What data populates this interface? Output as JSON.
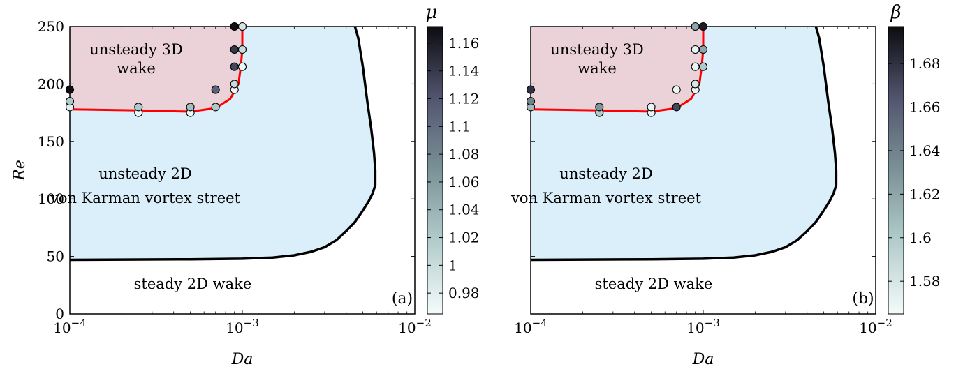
{
  "chart_data": [
    {
      "type": "scatter",
      "panel_label": "(a)",
      "xlabel": "Da",
      "ylabel": "Re",
      "xscale": "log",
      "xlim": [
        0.0001,
        0.01
      ],
      "ylim": [
        0,
        250
      ],
      "x_ticks": [
        {
          "v": 0.0001,
          "base": "10",
          "exp": "−4"
        },
        {
          "v": 0.001,
          "base": "10",
          "exp": "−3"
        },
        {
          "v": 0.01,
          "base": "10",
          "exp": "−2"
        }
      ],
      "y_ticks": [
        "0",
        "50",
        "100",
        "150",
        "200",
        "250"
      ],
      "regions": {
        "steady": {
          "label": "steady 2D wake",
          "color": "#ffffff"
        },
        "unsteady2d": {
          "line1": "unsteady 2D",
          "line2": "von Karman vortex street",
          "color": "#daeffa"
        },
        "unsteady3d": {
          "line1": "unsteady 3D",
          "line2": "wake",
          "color": "#ebd1d8"
        }
      },
      "boundary_2d": [
        [
          0.0001,
          47
        ],
        [
          0.0005,
          47.5
        ],
        [
          0.001,
          48
        ],
        [
          0.0015,
          49
        ],
        [
          0.002,
          51
        ],
        [
          0.0025,
          54
        ],
        [
          0.003,
          58
        ],
        [
          0.0035,
          64
        ],
        [
          0.004,
          72
        ],
        [
          0.0045,
          80
        ],
        [
          0.005,
          90
        ],
        [
          0.0054,
          98
        ],
        [
          0.0057,
          105
        ],
        [
          0.0059,
          112
        ],
        [
          0.0059,
          125
        ],
        [
          0.0058,
          140
        ],
        [
          0.0056,
          160
        ],
        [
          0.0053,
          185
        ],
        [
          0.005,
          215
        ],
        [
          0.0047,
          240
        ],
        [
          0.0045,
          250
        ]
      ],
      "boundary_3d": [
        [
          0.0001,
          178
        ],
        [
          0.00025,
          177
        ],
        [
          0.0005,
          176
        ],
        [
          0.0007,
          179
        ],
        [
          0.00085,
          187
        ],
        [
          0.00095,
          200
        ],
        [
          0.00098,
          215
        ],
        [
          0.001,
          230
        ],
        [
          0.001,
          250
        ]
      ],
      "colorbar": {
        "title": "μ",
        "min": 0.965,
        "max": 1.172,
        "ticks": [
          "0.98",
          "1",
          "1.02",
          "1.04",
          "1.06",
          "1.08",
          "1.1",
          "1.12",
          "1.14",
          "1.16"
        ]
      },
      "points": [
        {
          "x": 0.0001,
          "y": 180,
          "c": 0.98
        },
        {
          "x": 0.0001,
          "y": 185,
          "c": 1.02
        },
        {
          "x": 0.0001,
          "y": 195,
          "c": 1.17
        },
        {
          "x": 0.00025,
          "y": 175,
          "c": 0.97
        },
        {
          "x": 0.00025,
          "y": 180,
          "c": 1.02
        },
        {
          "x": 0.0005,
          "y": 175,
          "c": 0.97
        },
        {
          "x": 0.0005,
          "y": 180,
          "c": 1.03
        },
        {
          "x": 0.0007,
          "y": 180,
          "c": 1.02
        },
        {
          "x": 0.0007,
          "y": 195,
          "c": 1.11
        },
        {
          "x": 0.0009,
          "y": 195,
          "c": 0.97
        },
        {
          "x": 0.0009,
          "y": 200,
          "c": 1.0
        },
        {
          "x": 0.0009,
          "y": 215,
          "c": 1.13
        },
        {
          "x": 0.0009,
          "y": 230,
          "c": 1.14
        },
        {
          "x": 0.0009,
          "y": 250,
          "c": 1.17
        },
        {
          "x": 0.001,
          "y": 215,
          "c": 0.97
        },
        {
          "x": 0.001,
          "y": 230,
          "c": 1.0
        },
        {
          "x": 0.001,
          "y": 250,
          "c": 0.99
        }
      ]
    },
    {
      "type": "scatter",
      "panel_label": "(b)",
      "xlabel": "Da",
      "ylabel": "",
      "xscale": "log",
      "xlim": [
        0.0001,
        0.01
      ],
      "ylim": [
        0,
        250
      ],
      "x_ticks": [
        {
          "v": 0.0001,
          "base": "10",
          "exp": "−4"
        },
        {
          "v": 0.001,
          "base": "10",
          "exp": "−3"
        },
        {
          "v": 0.01,
          "base": "10",
          "exp": "−2"
        }
      ],
      "y_ticks": [],
      "regions": {
        "steady": {
          "label": "steady 2D wake",
          "color": "#ffffff"
        },
        "unsteady2d": {
          "line1": "unsteady 2D",
          "line2": "von Karman vortex street",
          "color": "#daeffa"
        },
        "unsteady3d": {
          "line1": "unsteady 3D",
          "line2": "wake",
          "color": "#ebd1d8"
        }
      },
      "boundary_2d": [
        [
          0.0001,
          47
        ],
        [
          0.0005,
          47.5
        ],
        [
          0.001,
          48
        ],
        [
          0.0015,
          49
        ],
        [
          0.002,
          51
        ],
        [
          0.0025,
          54
        ],
        [
          0.003,
          58
        ],
        [
          0.0035,
          64
        ],
        [
          0.004,
          72
        ],
        [
          0.0045,
          80
        ],
        [
          0.005,
          90
        ],
        [
          0.0054,
          98
        ],
        [
          0.0057,
          105
        ],
        [
          0.0059,
          112
        ],
        [
          0.0059,
          125
        ],
        [
          0.0058,
          140
        ],
        [
          0.0056,
          160
        ],
        [
          0.0053,
          185
        ],
        [
          0.005,
          215
        ],
        [
          0.0047,
          240
        ],
        [
          0.0045,
          250
        ]
      ],
      "boundary_3d": [
        [
          0.0001,
          178
        ],
        [
          0.00025,
          177
        ],
        [
          0.0005,
          176
        ],
        [
          0.0007,
          179
        ],
        [
          0.00085,
          187
        ],
        [
          0.00095,
          200
        ],
        [
          0.00098,
          215
        ],
        [
          0.001,
          230
        ],
        [
          0.001,
          250
        ]
      ],
      "colorbar": {
        "title": "β",
        "min": 1.565,
        "max": 1.697,
        "ticks": [
          "1.58",
          "1.6",
          "1.62",
          "1.64",
          "1.66",
          "1.68"
        ]
      },
      "points": [
        {
          "x": 0.0001,
          "y": 180,
          "c": 1.61
        },
        {
          "x": 0.0001,
          "y": 185,
          "c": 1.64
        },
        {
          "x": 0.0001,
          "y": 195,
          "c": 1.68
        },
        {
          "x": 0.00025,
          "y": 175,
          "c": 1.6
        },
        {
          "x": 0.00025,
          "y": 180,
          "c": 1.63
        },
        {
          "x": 0.0005,
          "y": 175,
          "c": 1.57
        },
        {
          "x": 0.0005,
          "y": 180,
          "c": 1.57
        },
        {
          "x": 0.0007,
          "y": 180,
          "c": 1.67
        },
        {
          "x": 0.0007,
          "y": 195,
          "c": 1.57
        },
        {
          "x": 0.0009,
          "y": 195,
          "c": 1.57
        },
        {
          "x": 0.0009,
          "y": 200,
          "c": 1.58
        },
        {
          "x": 0.0009,
          "y": 215,
          "c": 1.57
        },
        {
          "x": 0.0009,
          "y": 230,
          "c": 1.57
        },
        {
          "x": 0.0009,
          "y": 250,
          "c": 1.62
        },
        {
          "x": 0.001,
          "y": 215,
          "c": 1.6
        },
        {
          "x": 0.001,
          "y": 230,
          "c": 1.62
        },
        {
          "x": 0.001,
          "y": 250,
          "c": 1.69
        }
      ]
    }
  ]
}
